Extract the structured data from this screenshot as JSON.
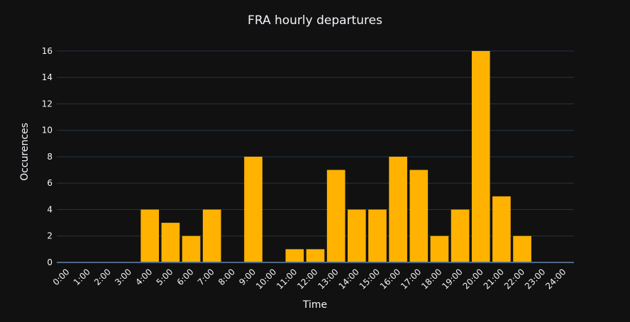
{
  "chart_data": {
    "type": "bar",
    "title": "FRA hourly departures",
    "xlabel": "Time",
    "ylabel": "Occurences",
    "categories": [
      "0:00",
      "1:00",
      "2:00",
      "3:00",
      "4:00",
      "5:00",
      "6:00",
      "7:00",
      "8:00",
      "9:00",
      "10:00",
      "11:00",
      "12:00",
      "13:00",
      "14:00",
      "15:00",
      "16:00",
      "17:00",
      "18:00",
      "19:00",
      "20:00",
      "21:00",
      "22:00",
      "23:00",
      "24:00"
    ],
    "values": [
      0,
      0,
      0,
      0,
      4,
      3,
      2,
      4,
      0,
      8,
      0,
      1,
      1,
      7,
      4,
      4,
      8,
      7,
      2,
      4,
      16,
      5,
      2,
      0,
      0
    ],
    "ylim": [
      0,
      16.8
    ],
    "yticks": [
      0,
      2,
      4,
      6,
      8,
      10,
      12,
      14,
      16
    ],
    "grid": true,
    "legend": "none",
    "colors": {
      "background": "#111111",
      "bar": "#FFB300",
      "grid": "#283442",
      "text": "#F2F5FA"
    }
  }
}
